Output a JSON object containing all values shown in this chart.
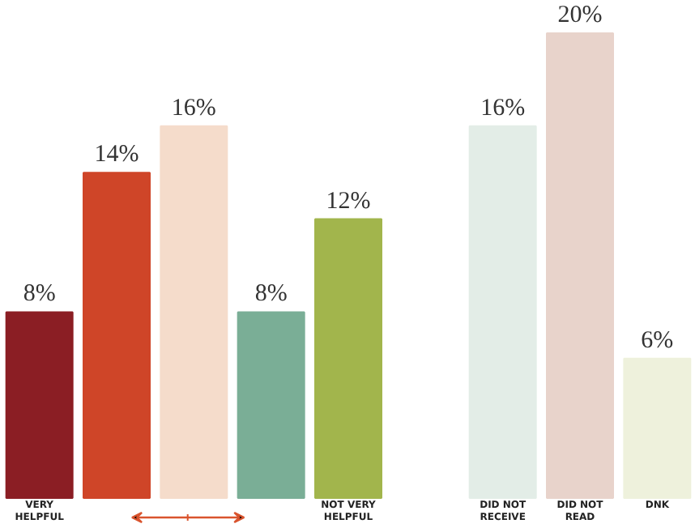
{
  "chart_data": {
    "type": "bar",
    "categories": [
      "VERY HELPFUL",
      null,
      null,
      null,
      "NOT VERY HELPFUL",
      null,
      "DID NOT RECEIVE",
      "DID NOT READ",
      "DNK"
    ],
    "values": [
      8,
      14,
      16,
      8,
      12,
      null,
      16,
      20,
      6
    ],
    "colors": [
      "#8b1e24",
      "#cf4528",
      "#f5dccb",
      "#7aae96",
      "#a2b54c",
      "#ffffff",
      "#e3ede7",
      "#e8d3cb",
      "#eef1dc"
    ],
    "value_labels": [
      "8%",
      "14%",
      "16%",
      "8%",
      "12%",
      null,
      "16%",
      "20%",
      "6%"
    ],
    "grid": false
  }
}
